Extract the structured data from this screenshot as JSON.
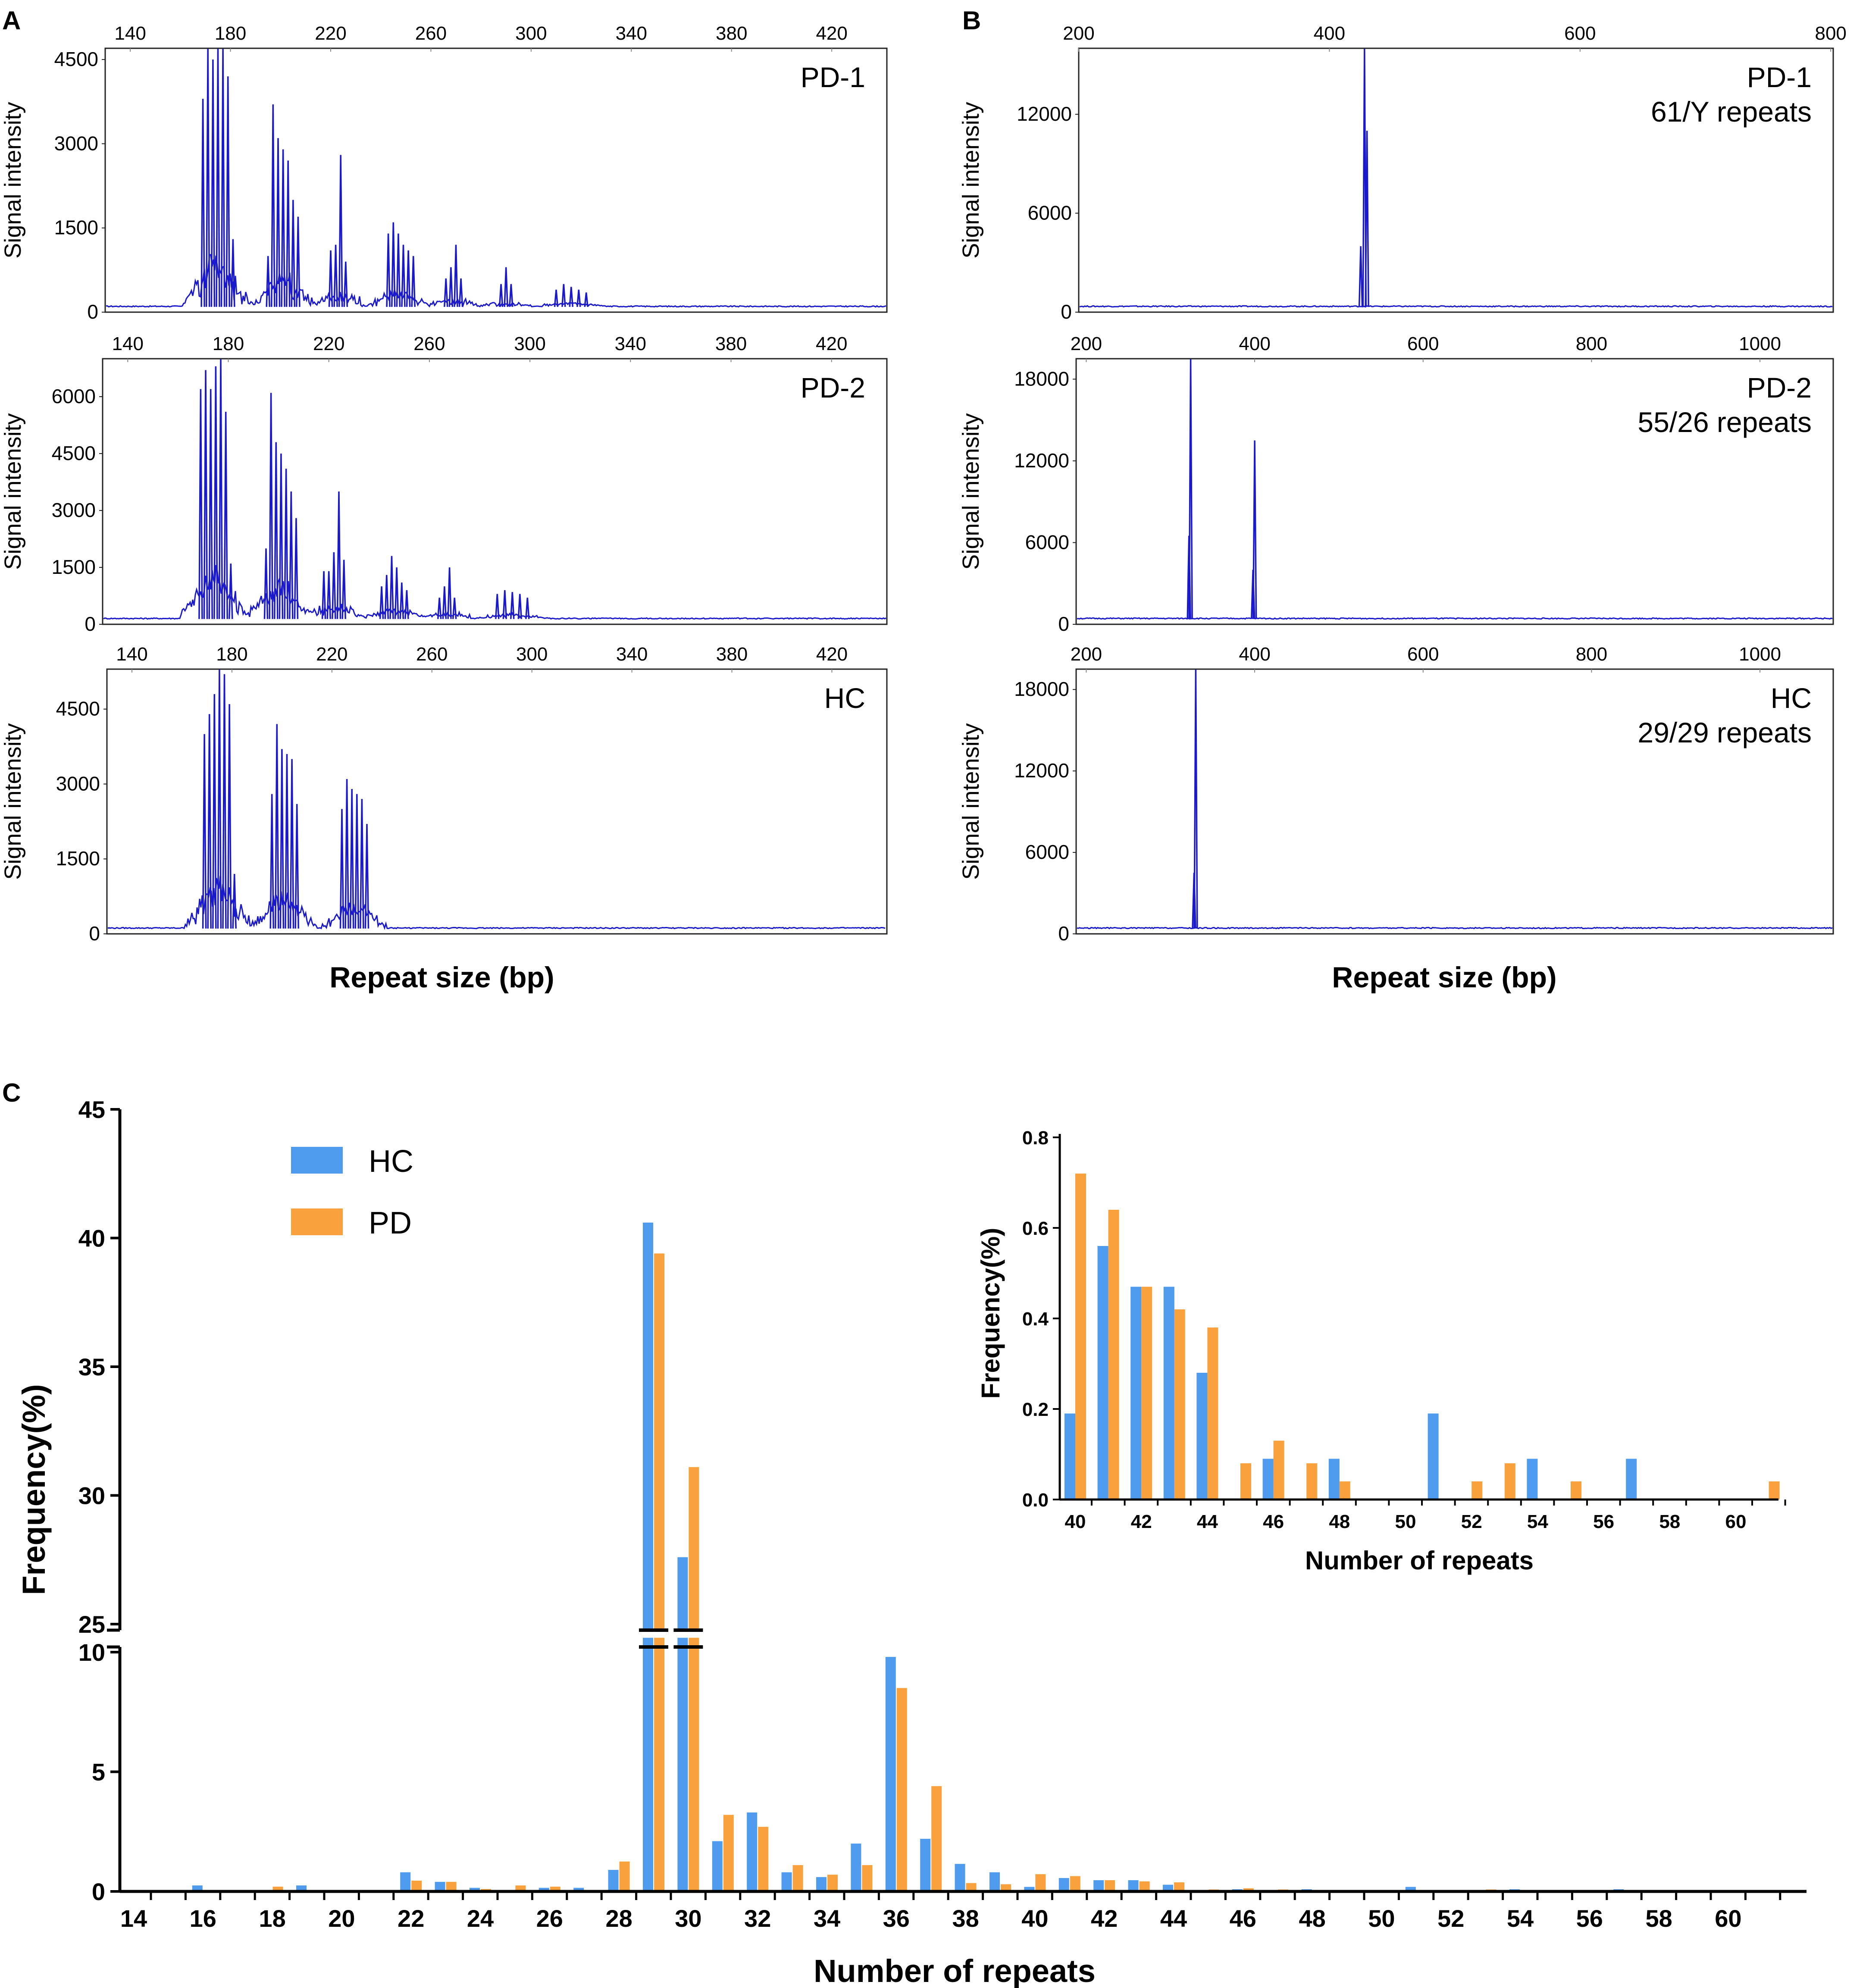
{
  "figure": {
    "panel_labels": [
      "A",
      "B",
      "C"
    ],
    "panel_a": {
      "xlabel": "Repeat size (bp)",
      "ylabel": "Signal intensity",
      "x_ticks": [
        "140",
        "180",
        "220",
        "260",
        "300",
        "340",
        "380",
        "420"
      ],
      "plots": [
        {
          "name": "PD-1",
          "y_ticks": [
            "0",
            "1500",
            "3000",
            "4500"
          ]
        },
        {
          "name": "PD-2",
          "y_ticks": [
            "0",
            "1500",
            "3000",
            "4500",
            "6000"
          ]
        },
        {
          "name": "HC",
          "y_ticks": [
            "0",
            "1500",
            "3000",
            "4500"
          ]
        }
      ]
    },
    "panel_b": {
      "xlabel": "Repeat size (bp)",
      "ylabel": "Signal intensity",
      "plots": [
        {
          "name": "PD-1",
          "repeats": "61/Y  repeats",
          "x_ticks": [
            "200",
            "400",
            "600",
            "800"
          ],
          "y_ticks": [
            "0",
            "6000",
            "12000"
          ]
        },
        {
          "name": "PD-2",
          "repeats": "55/26  repeats",
          "x_ticks": [
            "200",
            "400",
            "600",
            "800",
            "1000"
          ],
          "y_ticks": [
            "0",
            "6000",
            "12000",
            "18000"
          ]
        },
        {
          "name": "HC",
          "repeats": "29/29  repeats",
          "x_ticks": [
            "200",
            "400",
            "600",
            "800",
            "1000"
          ],
          "y_ticks": [
            "0",
            "6000",
            "12000",
            "18000"
          ]
        }
      ]
    }
  },
  "chart_data": [
    {
      "panel": "A",
      "type": "line",
      "title": "PD-1",
      "xlabel": "Repeat size (bp)",
      "ylabel": "Signal intensity",
      "xlim": [
        130,
        442
      ],
      "ylim": [
        0,
        4700
      ],
      "peaks": [
        {
          "x": 169,
          "y": 3800
        },
        {
          "x": 171,
          "y": 4700
        },
        {
          "x": 173,
          "y": 4500
        },
        {
          "x": 175,
          "y": 4700
        },
        {
          "x": 177,
          "y": 4700
        },
        {
          "x": 179,
          "y": 4200
        },
        {
          "x": 181,
          "y": 1300
        },
        {
          "x": 195,
          "y": 1000
        },
        {
          "x": 197,
          "y": 3700
        },
        {
          "x": 199,
          "y": 3100
        },
        {
          "x": 201,
          "y": 2900
        },
        {
          "x": 203,
          "y": 2700
        },
        {
          "x": 205,
          "y": 2000
        },
        {
          "x": 207,
          "y": 1700
        },
        {
          "x": 220,
          "y": 1100
        },
        {
          "x": 222,
          "y": 1200
        },
        {
          "x": 224,
          "y": 2800
        },
        {
          "x": 226,
          "y": 900
        },
        {
          "x": 243,
          "y": 1400
        },
        {
          "x": 245,
          "y": 1600
        },
        {
          "x": 247,
          "y": 1400
        },
        {
          "x": 249,
          "y": 1200
        },
        {
          "x": 251,
          "y": 1100
        },
        {
          "x": 253,
          "y": 1000
        },
        {
          "x": 266,
          "y": 600
        },
        {
          "x": 268,
          "y": 800
        },
        {
          "x": 270,
          "y": 1200
        },
        {
          "x": 272,
          "y": 600
        },
        {
          "x": 288,
          "y": 500
        },
        {
          "x": 290,
          "y": 800
        },
        {
          "x": 292,
          "y": 500
        },
        {
          "x": 310,
          "y": 400
        },
        {
          "x": 313,
          "y": 500
        },
        {
          "x": 316,
          "y": 450
        },
        {
          "x": 319,
          "y": 400
        },
        {
          "x": 322,
          "y": 350
        }
      ]
    },
    {
      "panel": "A",
      "type": "line",
      "title": "PD-2",
      "xlabel": "Repeat size (bp)",
      "ylabel": "Signal intensity",
      "xlim": [
        130,
        442
      ],
      "ylim": [
        0,
        7000
      ],
      "peaks": [
        {
          "x": 169,
          "y": 6200
        },
        {
          "x": 171,
          "y": 6700
        },
        {
          "x": 173,
          "y": 6200
        },
        {
          "x": 175,
          "y": 6800
        },
        {
          "x": 177,
          "y": 7000
        },
        {
          "x": 179,
          "y": 5600
        },
        {
          "x": 181,
          "y": 1600
        },
        {
          "x": 195,
          "y": 2000
        },
        {
          "x": 197,
          "y": 6100
        },
        {
          "x": 199,
          "y": 4800
        },
        {
          "x": 201,
          "y": 4500
        },
        {
          "x": 203,
          "y": 4100
        },
        {
          "x": 205,
          "y": 3500
        },
        {
          "x": 207,
          "y": 2800
        },
        {
          "x": 218,
          "y": 1400
        },
        {
          "x": 220,
          "y": 1400
        },
        {
          "x": 222,
          "y": 1900
        },
        {
          "x": 224,
          "y": 3500
        },
        {
          "x": 226,
          "y": 1700
        },
        {
          "x": 241,
          "y": 1000
        },
        {
          "x": 243,
          "y": 1300
        },
        {
          "x": 245,
          "y": 1800
        },
        {
          "x": 247,
          "y": 1500
        },
        {
          "x": 249,
          "y": 1100
        },
        {
          "x": 251,
          "y": 900
        },
        {
          "x": 264,
          "y": 700
        },
        {
          "x": 266,
          "y": 1000
        },
        {
          "x": 268,
          "y": 1500
        },
        {
          "x": 270,
          "y": 700
        },
        {
          "x": 287,
          "y": 800
        },
        {
          "x": 290,
          "y": 900
        },
        {
          "x": 293,
          "y": 850
        },
        {
          "x": 296,
          "y": 800
        },
        {
          "x": 299,
          "y": 700
        }
      ]
    },
    {
      "panel": "A",
      "type": "line",
      "title": "HC",
      "xlabel": "Repeat size (bp)",
      "ylabel": "Signal intensity",
      "xlim": [
        130,
        442
      ],
      "ylim": [
        0,
        5300
      ],
      "peaks": [
        {
          "x": 169,
          "y": 4000
        },
        {
          "x": 171,
          "y": 4400
        },
        {
          "x": 173,
          "y": 4800
        },
        {
          "x": 175,
          "y": 5300
        },
        {
          "x": 177,
          "y": 5200
        },
        {
          "x": 179,
          "y": 4600
        },
        {
          "x": 181,
          "y": 1200
        },
        {
          "x": 196,
          "y": 2800
        },
        {
          "x": 198,
          "y": 4200
        },
        {
          "x": 200,
          "y": 3700
        },
        {
          "x": 202,
          "y": 3600
        },
        {
          "x": 204,
          "y": 3500
        },
        {
          "x": 206,
          "y": 2600
        },
        {
          "x": 224,
          "y": 2500
        },
        {
          "x": 226,
          "y": 3100
        },
        {
          "x": 228,
          "y": 2900
        },
        {
          "x": 230,
          "y": 2800
        },
        {
          "x": 232,
          "y": 2700
        },
        {
          "x": 234,
          "y": 2200
        }
      ]
    },
    {
      "panel": "B",
      "type": "line",
      "title": "PD-1",
      "annotation": "61/Y  repeats",
      "xlabel": "Repeat size (bp)",
      "ylabel": "Signal intensity",
      "xlim": [
        200,
        802
      ],
      "ylim": [
        0,
        16000
      ],
      "peaks": [
        {
          "x": 425,
          "y": 4000
        },
        {
          "x": 428,
          "y": 16000
        },
        {
          "x": 430,
          "y": 11000
        }
      ]
    },
    {
      "panel": "B",
      "type": "line",
      "title": "PD-2",
      "annotation": "55/26  repeats",
      "xlabel": "Repeat size (bp)",
      "ylabel": "Signal intensity",
      "xlim": [
        188,
        1087
      ],
      "ylim": [
        0,
        19500
      ],
      "peaks": [
        {
          "x": 322,
          "y": 6500
        },
        {
          "x": 324,
          "y": 19500
        },
        {
          "x": 398,
          "y": 4000
        },
        {
          "x": 400,
          "y": 13500
        }
      ]
    },
    {
      "panel": "B",
      "type": "line",
      "title": "HC",
      "annotation": "29/29  repeats",
      "xlabel": "Repeat size (bp)",
      "ylabel": "Signal intensity",
      "xlim": [
        188,
        1087
      ],
      "ylim": [
        0,
        19500
      ],
      "peaks": [
        {
          "x": 328,
          "y": 4500
        },
        {
          "x": 330,
          "y": 19500
        }
      ]
    },
    {
      "panel": "C",
      "type": "bar",
      "title": "",
      "xlabel": "Number of repeats",
      "ylabel": "Frequency(%)",
      "axis_break": [
        10,
        25
      ],
      "ylim_lower": [
        0,
        10
      ],
      "ylim_upper": [
        25,
        45
      ],
      "y_ticks": [
        "0",
        "5",
        "10",
        "25",
        "30",
        "35",
        "40",
        "45"
      ],
      "x_ticks": [
        "14",
        "16",
        "18",
        "20",
        "22",
        "24",
        "26",
        "28",
        "30",
        "32",
        "34",
        "36",
        "38",
        "40",
        "42",
        "44",
        "46",
        "48",
        "50",
        "52",
        "54",
        "56",
        "58",
        "60"
      ],
      "categories": [
        15,
        16,
        17,
        18,
        19,
        20,
        21,
        22,
        23,
        24,
        25,
        26,
        27,
        28,
        29,
        30,
        31,
        32,
        33,
        34,
        35,
        36,
        37,
        38,
        39,
        40,
        41,
        42,
        43,
        44,
        45,
        46,
        47,
        48,
        49,
        50,
        51,
        52,
        53,
        54,
        55,
        56,
        57,
        58,
        59,
        60,
        61
      ],
      "series": [
        {
          "name": "HC",
          "color": "#4f9cee",
          "values": [
            0.05,
            0.25,
            0.05,
            0.05,
            0.25,
            0,
            0.05,
            0.8,
            0.4,
            0.15,
            0,
            0.15,
            0.15,
            0.9,
            40.6,
            27.6,
            2.1,
            3.3,
            0.8,
            0.6,
            2.0,
            9.8,
            2.2,
            1.15,
            0.8,
            0.19,
            0.56,
            0.47,
            0.47,
            0.28,
            0,
            0.09,
            0,
            0.09,
            0,
            0,
            0.19,
            0,
            0,
            0.09,
            0,
            0,
            0.09,
            0,
            0,
            0,
            0
          ]
        },
        {
          "name": "PD",
          "color": "#f9a13c",
          "values": [
            0,
            0.05,
            0.05,
            0.2,
            0.05,
            0,
            0.05,
            0.45,
            0.4,
            0.1,
            0.25,
            0.2,
            0.05,
            1.25,
            39.4,
            31.1,
            3.2,
            2.7,
            1.1,
            0.7,
            1.1,
            8.5,
            4.4,
            0.35,
            0.3,
            0.72,
            0.64,
            0.47,
            0.42,
            0.38,
            0.08,
            0.13,
            0.08,
            0.04,
            0,
            0,
            0,
            0.04,
            0.08,
            0,
            0.04,
            0,
            0,
            0,
            0,
            0,
            0.04
          ]
        }
      ],
      "legend": [
        "HC",
        "PD"
      ]
    },
    {
      "panel": "C-inset",
      "type": "bar",
      "title": "",
      "xlabel": "Number of repeats",
      "ylabel": "Frequency(%)",
      "ylim": [
        0,
        0.8
      ],
      "y_ticks": [
        "0.0",
        "0.2",
        "0.4",
        "0.6",
        "0.8"
      ],
      "x_ticks": [
        "40",
        "42",
        "44",
        "46",
        "48",
        "50",
        "52",
        "54",
        "56",
        "58",
        "60"
      ],
      "categories": [
        40,
        41,
        42,
        43,
        44,
        45,
        46,
        47,
        48,
        49,
        50,
        51,
        52,
        53,
        54,
        55,
        56,
        57,
        58,
        59,
        60,
        61
      ],
      "series": [
        {
          "name": "HC",
          "color": "#4f9cee",
          "values": [
            0.19,
            0.56,
            0.47,
            0.47,
            0.28,
            0,
            0.09,
            0,
            0.09,
            0,
            0,
            0.19,
            0,
            0,
            0.09,
            0,
            0,
            0.09,
            0,
            0,
            0,
            0
          ]
        },
        {
          "name": "PD",
          "color": "#f9a13c",
          "values": [
            0.72,
            0.64,
            0.47,
            0.42,
            0.38,
            0.08,
            0.13,
            0.08,
            0.04,
            0,
            0,
            0,
            0.04,
            0.08,
            0,
            0.04,
            0,
            0,
            0,
            0,
            0,
            0.04
          ]
        }
      ]
    }
  ]
}
